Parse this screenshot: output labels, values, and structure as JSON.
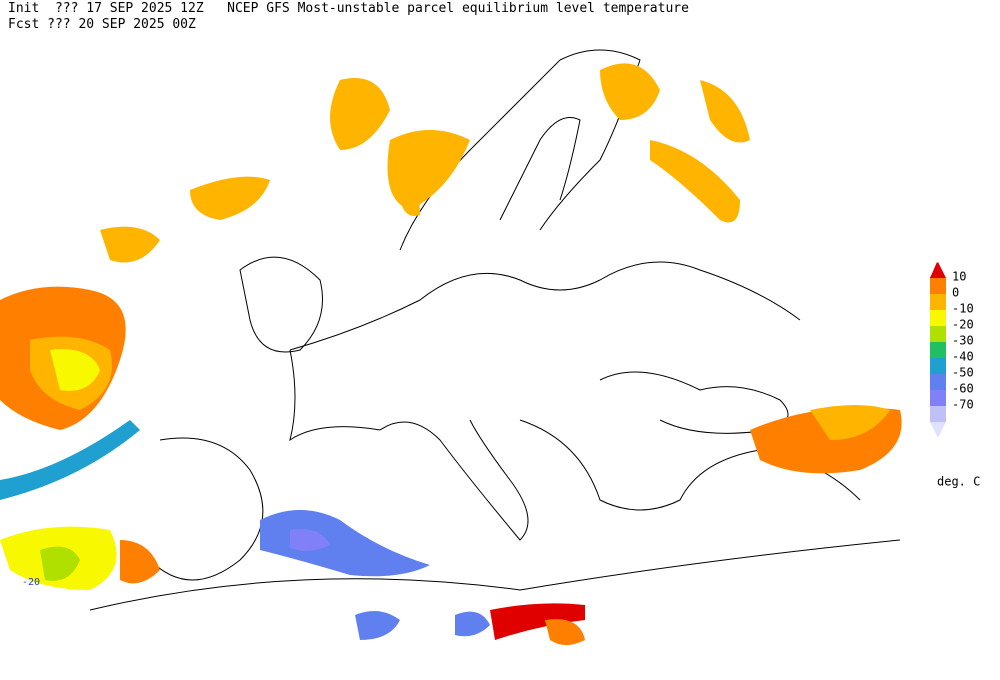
{
  "header": {
    "line1": "Init  ??? 17 SEP 2025 12Z   NCEP GFS Most-unstable parcel equilibrium level temperature",
    "line2": "Fcst ??? 20 SEP 2025 00Z"
  },
  "legend": {
    "levels": [
      10,
      0,
      -10,
      -20,
      -30,
      -40,
      -50,
      -60,
      -70
    ],
    "colors": [
      "#e00000",
      "#ff8000",
      "#ffb400",
      "#f8f800",
      "#b0e000",
      "#20c060",
      "#20a0d0",
      "#6080f0",
      "#8080f8",
      "#c0c0f8",
      "#e0e0ff"
    ],
    "unit": "deg. C"
  },
  "map": {
    "contour_label": "-20"
  }
}
